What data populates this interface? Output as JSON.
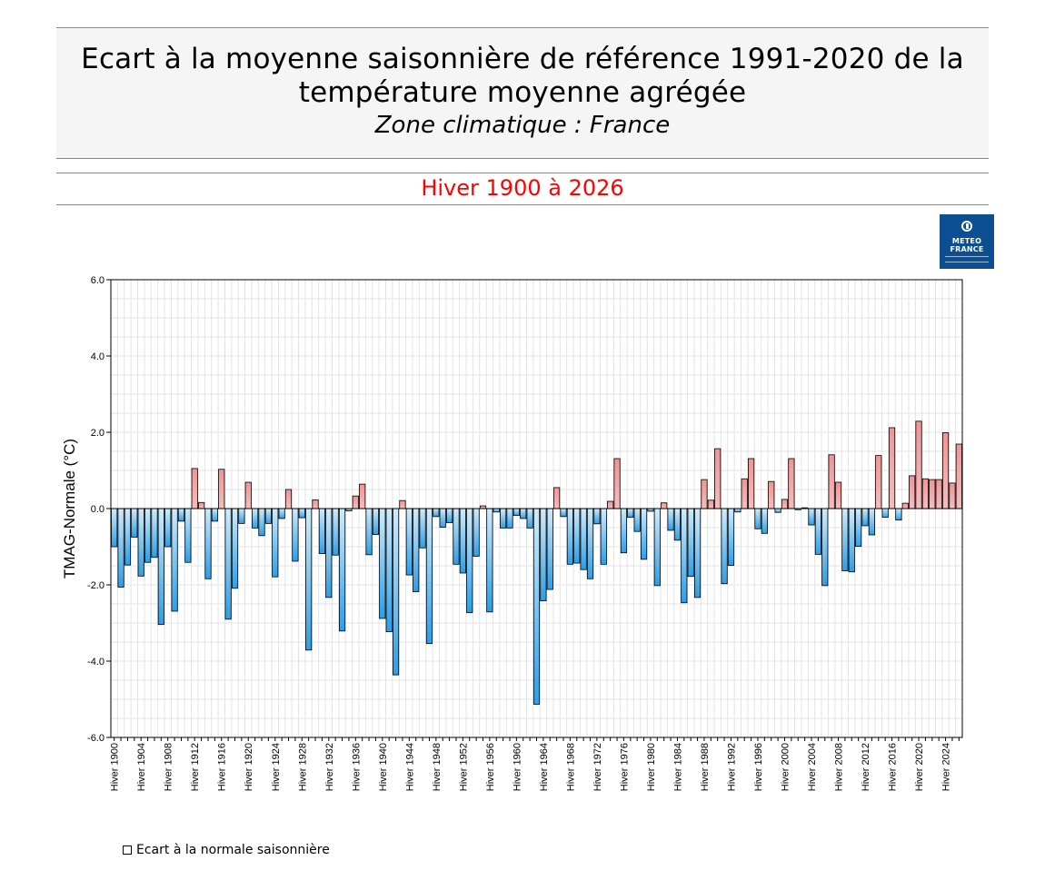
{
  "header": {
    "title": "Ecart à la moyenne saisonnière  de référence 1991-2020  de la température moyenne  agrégée",
    "subtitle": "Zone climatique : France",
    "period": "Hiver 1900 à 2026"
  },
  "logo": {
    "line1": "METEO",
    "line2": "FRANCE"
  },
  "colors": {
    "positive": "#f4a6a6",
    "negative_light": "#d0ecfb",
    "negative_dark": "#2b9ee8",
    "period_title": "#ff0000",
    "logo_bg": "#0b4f92"
  },
  "chart_data": {
    "type": "bar",
    "ylabel": "TMAG-Normale (°C)",
    "ylim": [
      -6,
      6
    ],
    "yticks": [
      "6.0",
      "4.0",
      "2.0",
      "0.0",
      "-2.0",
      "-4.0",
      "-6.0"
    ],
    "grid": true,
    "legend_position": "bottom-left",
    "series": [
      {
        "name": "Ecart à la normale saisonnière",
        "categories": [
          "Hiver 1900",
          "Hiver 1901",
          "Hiver 1902",
          "Hiver 1903",
          "Hiver 1904",
          "Hiver 1905",
          "Hiver 1906",
          "Hiver 1907",
          "Hiver 1908",
          "Hiver 1909",
          "Hiver 1910",
          "Hiver 1911",
          "Hiver 1912",
          "Hiver 1913",
          "Hiver 1914",
          "Hiver 1915",
          "Hiver 1916",
          "Hiver 1917",
          "Hiver 1918",
          "Hiver 1919",
          "Hiver 1920",
          "Hiver 1921",
          "Hiver 1922",
          "Hiver 1923",
          "Hiver 1924",
          "Hiver 1925",
          "Hiver 1926",
          "Hiver 1927",
          "Hiver 1928",
          "Hiver 1929",
          "Hiver 1930",
          "Hiver 1931",
          "Hiver 1932",
          "Hiver 1933",
          "Hiver 1934",
          "Hiver 1935",
          "Hiver 1936",
          "Hiver 1937",
          "Hiver 1938",
          "Hiver 1939",
          "Hiver 1940",
          "Hiver 1941",
          "Hiver 1942",
          "Hiver 1943",
          "Hiver 1944",
          "Hiver 1945",
          "Hiver 1946",
          "Hiver 1947",
          "Hiver 1948",
          "Hiver 1949",
          "Hiver 1950",
          "Hiver 1951",
          "Hiver 1952",
          "Hiver 1953",
          "Hiver 1954",
          "Hiver 1955",
          "Hiver 1956",
          "Hiver 1957",
          "Hiver 1958",
          "Hiver 1959",
          "Hiver 1960",
          "Hiver 1961",
          "Hiver 1962",
          "Hiver 1963",
          "Hiver 1964",
          "Hiver 1965",
          "Hiver 1966",
          "Hiver 1967",
          "Hiver 1968",
          "Hiver 1969",
          "Hiver 1970",
          "Hiver 1971",
          "Hiver 1972",
          "Hiver 1973",
          "Hiver 1974",
          "Hiver 1975",
          "Hiver 1976",
          "Hiver 1977",
          "Hiver 1978",
          "Hiver 1979",
          "Hiver 1980",
          "Hiver 1981",
          "Hiver 1982",
          "Hiver 1983",
          "Hiver 1984",
          "Hiver 1985",
          "Hiver 1986",
          "Hiver 1987",
          "Hiver 1988",
          "Hiver 1989",
          "Hiver 1990",
          "Hiver 1991",
          "Hiver 1992",
          "Hiver 1993",
          "Hiver 1994",
          "Hiver 1995",
          "Hiver 1996",
          "Hiver 1997",
          "Hiver 1998",
          "Hiver 1999",
          "Hiver 2000",
          "Hiver 2001",
          "Hiver 2002",
          "Hiver 2003",
          "Hiver 2004",
          "Hiver 2005",
          "Hiver 2006",
          "Hiver 2007",
          "Hiver 2008",
          "Hiver 2009",
          "Hiver 2010",
          "Hiver 2011",
          "Hiver 2012",
          "Hiver 2013",
          "Hiver 2014",
          "Hiver 2015",
          "Hiver 2016",
          "Hiver 2017",
          "Hiver 2018",
          "Hiver 2019",
          "Hiver 2020",
          "Hiver 2021",
          "Hiver 2022",
          "Hiver 2023",
          "Hiver 2024",
          "Hiver 2025",
          "Hiver 2026"
        ],
        "values": [
          -1.0,
          -2.06,
          -1.48,
          -0.75,
          -1.77,
          -1.41,
          -1.28,
          -3.04,
          -1.0,
          -2.69,
          -0.33,
          -1.41,
          1.05,
          0.16,
          -1.84,
          -0.33,
          1.03,
          -2.9,
          -2.09,
          -0.39,
          0.69,
          -0.51,
          -0.71,
          -0.39,
          -1.79,
          -0.26,
          0.5,
          -1.38,
          -0.24,
          -3.71,
          0.23,
          -1.18,
          -2.33,
          -1.22,
          -3.21,
          -0.06,
          0.33,
          0.64,
          -1.21,
          -0.68,
          -2.88,
          -3.23,
          -4.36,
          0.21,
          -1.74,
          -2.18,
          -1.03,
          -3.54,
          -0.21,
          -0.49,
          -0.37,
          -1.46,
          -1.69,
          -2.73,
          -1.25,
          0.07,
          -2.71,
          -0.09,
          -0.51,
          -0.51,
          -0.18,
          -0.26,
          -0.51,
          -5.13,
          -2.42,
          -2.12,
          0.55,
          -0.21,
          -1.46,
          -1.43,
          -1.6,
          -1.84,
          -0.4,
          -1.46,
          0.19,
          1.31,
          -1.16,
          -0.23,
          -0.6,
          -1.33,
          -0.07,
          -2.02,
          0.15,
          -0.57,
          -0.83,
          -2.47,
          -1.78,
          -2.33,
          0.76,
          0.22,
          1.57,
          -1.97,
          -1.49,
          -0.09,
          0.78,
          1.31,
          -0.53,
          -0.65,
          0.71,
          -0.1,
          0.24,
          1.31,
          -0.03,
          0.02,
          -0.43,
          -1.2,
          -2.02,
          1.41,
          0.69,
          -1.63,
          -1.66,
          -0.99,
          -0.45,
          -0.69,
          1.39,
          -0.23,
          2.12,
          -0.3,
          0.14,
          0.86,
          2.29,
          0.78,
          0.76,
          0.76,
          1.99,
          0.67,
          1.69
        ]
      }
    ]
  }
}
